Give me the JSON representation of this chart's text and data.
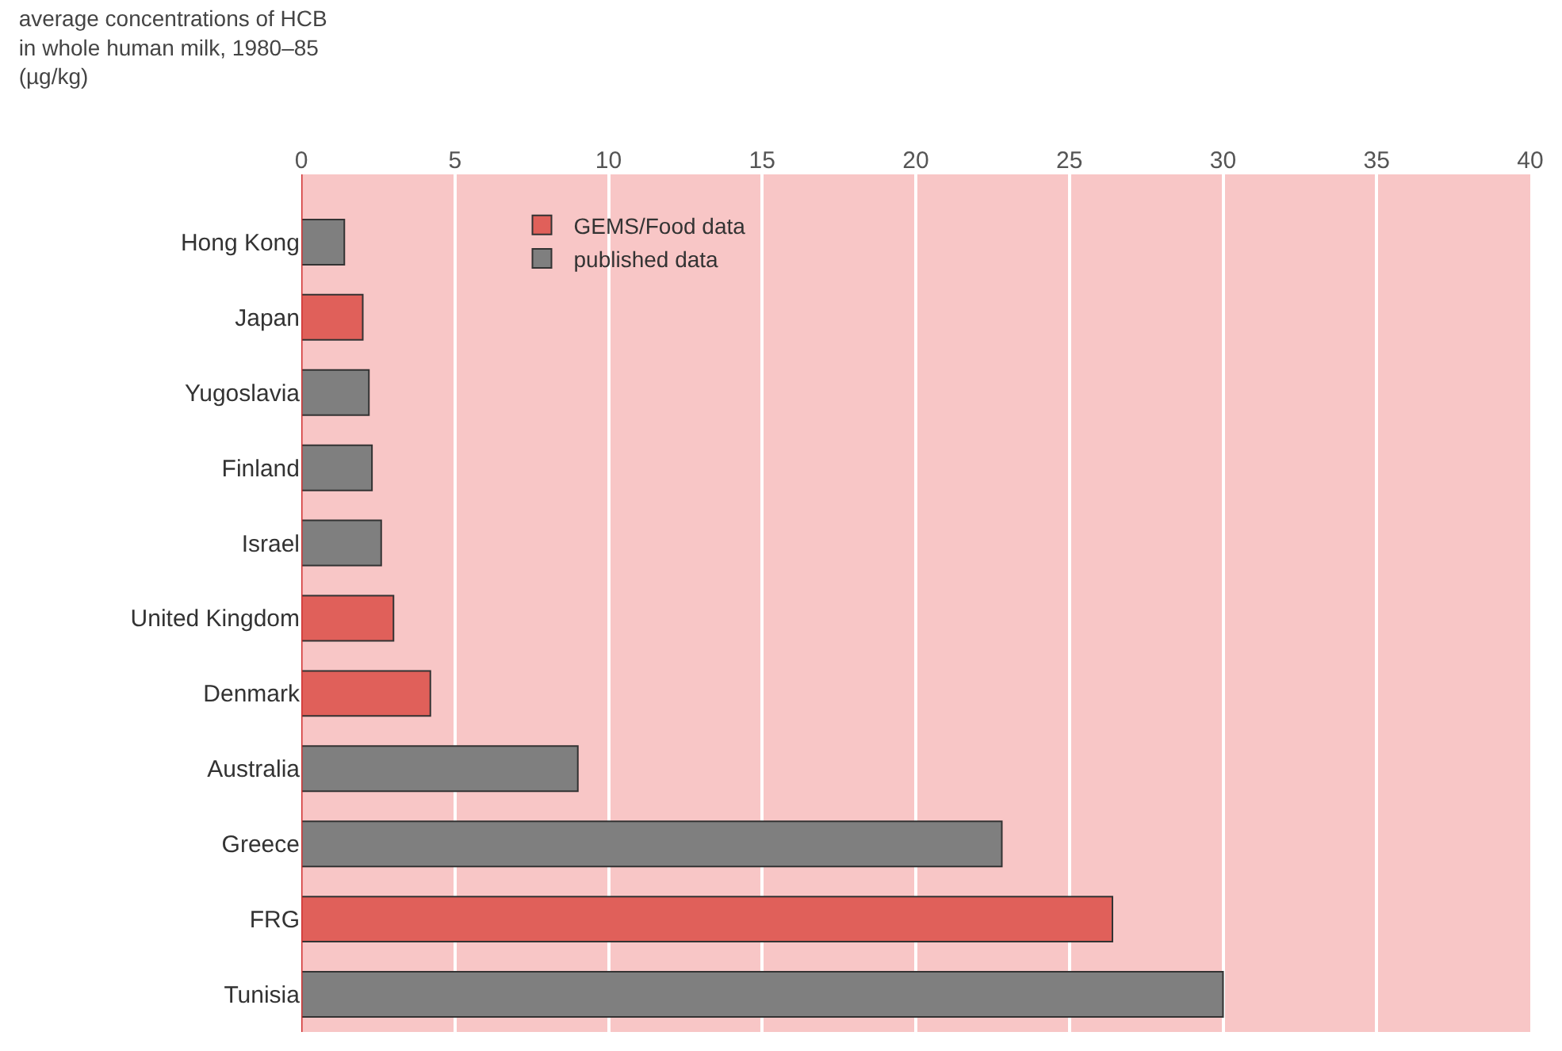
{
  "chart_data": {
    "type": "bar",
    "orientation": "horizontal",
    "stacked": true,
    "title": "average concentrations of HCB\nin whole human milk, 1980–85\n(µg/kg)",
    "categories": [
      "Hong Kong",
      "Japan",
      "Yugoslavia",
      "Finland",
      "Israel",
      "United Kingdom",
      "Denmark",
      "Australia",
      "Greece",
      "FRG",
      "Tunisia"
    ],
    "series": [
      {
        "name": "GEMS/Food data",
        "color": "#e0605a",
        "values": [
          null,
          2.0,
          null,
          null,
          null,
          3.0,
          4.2,
          null,
          null,
          26.4,
          null
        ]
      },
      {
        "name": "published data",
        "color": "#7f7f7f",
        "values": [
          1.4,
          null,
          2.2,
          2.3,
          2.6,
          null,
          null,
          9.0,
          22.8,
          null,
          30.0
        ]
      }
    ],
    "xlim": [
      0,
      40
    ],
    "xticks": [
      0,
      5,
      10,
      15,
      20,
      25,
      30,
      35,
      40
    ],
    "grid": "x",
    "legend": "top left"
  }
}
